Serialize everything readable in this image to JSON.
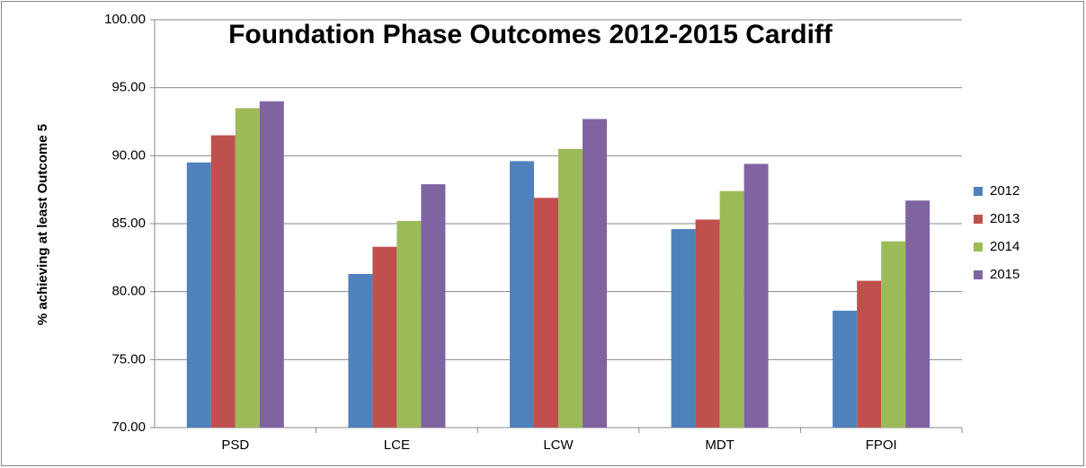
{
  "chart_data": {
    "type": "bar",
    "title": "Foundation Phase Outcomes 2012-2015 Cardiff",
    "y_label": "% achieving at least Outcome 5",
    "categories": [
      "PSD",
      "LCE",
      "LCW",
      "MDT",
      "FPOI"
    ],
    "series": [
      {
        "name": "2012",
        "color": "#4f81bd",
        "values": [
          89.5,
          81.3,
          89.6,
          84.6,
          78.6
        ]
      },
      {
        "name": "2013",
        "color": "#c0504d",
        "values": [
          91.5,
          83.3,
          86.9,
          85.3,
          80.8
        ]
      },
      {
        "name": "2014",
        "color": "#9bbb59",
        "values": [
          93.5,
          85.2,
          90.5,
          87.4,
          83.7
        ]
      },
      {
        "name": "2015",
        "color": "#8064a2",
        "values": [
          94.0,
          87.9,
          92.7,
          89.4,
          86.7
        ]
      }
    ],
    "ylim": [
      70,
      100
    ],
    "yticks": [
      {
        "value": 70,
        "label": "70.00"
      },
      {
        "value": 75,
        "label": "75.00"
      },
      {
        "value": 80,
        "label": "80.00"
      },
      {
        "value": 85,
        "label": "85.00"
      },
      {
        "value": 90,
        "label": "90.00"
      },
      {
        "value": 95,
        "label": "95.00"
      },
      {
        "value": 100,
        "label": "100.00"
      }
    ],
    "grid": true,
    "legend": "right"
  }
}
